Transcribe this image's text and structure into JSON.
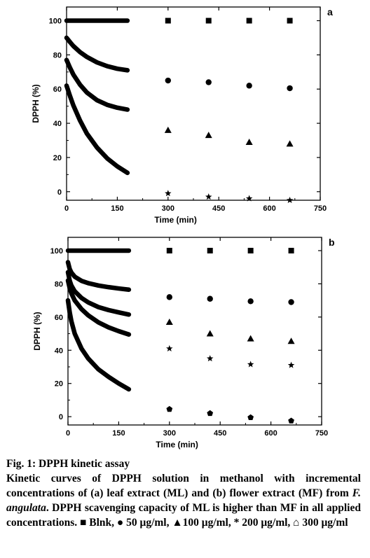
{
  "chart_data": [
    {
      "type": "scatter",
      "panel_label": "a",
      "xlabel": "Time (min)",
      "ylabel": "DPPH (%)",
      "xlim": [
        0,
        750
      ],
      "ylim": [
        -5,
        108
      ],
      "xticks": [
        0,
        150,
        300,
        450,
        600,
        750
      ],
      "yticks": [
        0,
        20,
        40,
        60,
        80,
        100
      ],
      "series": [
        {
          "marker": "square",
          "curve": [
            [
              0,
              100
            ],
            [
              180,
              100
            ]
          ],
          "points": [
            [
              300,
              100
            ],
            [
              420,
              100
            ],
            [
              540,
              100
            ],
            [
              660,
              100
            ]
          ]
        },
        {
          "marker": "circle",
          "curve": [
            [
              0,
              90
            ],
            [
              10,
              87.5
            ],
            [
              20,
              85.2
            ],
            [
              40,
              81.6
            ],
            [
              60,
              78.8
            ],
            [
              90,
              75.6
            ],
            [
              120,
              73.4
            ],
            [
              150,
              71.9
            ],
            [
              180,
              71
            ]
          ],
          "points": [
            [
              300,
              65
            ],
            [
              420,
              64
            ],
            [
              540,
              62
            ],
            [
              660,
              60.5
            ]
          ]
        },
        {
          "marker": "triangle",
          "curve": [
            [
              0,
              77
            ],
            [
              10,
              72.5
            ],
            [
              20,
              68.5
            ],
            [
              40,
              62.5
            ],
            [
              60,
              58
            ],
            [
              90,
              53.5
            ],
            [
              120,
              50.8
            ],
            [
              150,
              49.1
            ],
            [
              180,
              48
            ]
          ],
          "points": [
            [
              300,
              36
            ],
            [
              420,
              33
            ],
            [
              540,
              29
            ],
            [
              660,
              28
            ]
          ]
        },
        {
          "marker": "star",
          "curve": [
            [
              0,
              62
            ],
            [
              10,
              56
            ],
            [
              20,
              50.5
            ],
            [
              40,
              41.5
            ],
            [
              60,
              34
            ],
            [
              90,
              25.8
            ],
            [
              120,
              19.5
            ],
            [
              150,
              14.8
            ],
            [
              180,
              11
            ]
          ],
          "points": [
            [
              300,
              -1
            ],
            [
              420,
              -3
            ],
            [
              540,
              -4
            ],
            [
              660,
              -5
            ]
          ]
        }
      ]
    },
    {
      "type": "scatter",
      "panel_label": "b",
      "xlabel": "Time (min)",
      "ylabel": "DPPH (%)",
      "xlim": [
        0,
        750
      ],
      "ylim": [
        -5,
        108
      ],
      "xticks": [
        0,
        150,
        300,
        450,
        600,
        750
      ],
      "yticks": [
        0,
        20,
        40,
        60,
        80,
        100
      ],
      "series": [
        {
          "marker": "square",
          "curve": [
            [
              0,
              100
            ],
            [
              180,
              100
            ]
          ],
          "points": [
            [
              300,
              100
            ],
            [
              420,
              100
            ],
            [
              540,
              100
            ],
            [
              660,
              100
            ]
          ]
        },
        {
          "marker": "circle",
          "curve": [
            [
              0,
              93
            ],
            [
              5,
              89
            ],
            [
              10,
              86.8
            ],
            [
              20,
              84.3
            ],
            [
              40,
              81.8
            ],
            [
              60,
              80.4
            ],
            [
              90,
              79
            ],
            [
              120,
              78
            ],
            [
              150,
              77.2
            ],
            [
              180,
              76.5
            ]
          ],
          "points": [
            [
              300,
              72
            ],
            [
              420,
              71
            ],
            [
              540,
              69.5
            ],
            [
              660,
              69
            ]
          ]
        },
        {
          "marker": "triangle",
          "curve": [
            [
              0,
              87
            ],
            [
              5,
              82
            ],
            [
              10,
              79
            ],
            [
              20,
              75.5
            ],
            [
              40,
              71.5
            ],
            [
              60,
              68.8
            ],
            [
              90,
              66
            ],
            [
              120,
              64.2
            ],
            [
              150,
              62.8
            ],
            [
              180,
              61.5
            ]
          ],
          "points": [
            [
              300,
              57
            ],
            [
              420,
              50
            ],
            [
              540,
              47
            ],
            [
              660,
              45.5
            ]
          ]
        },
        {
          "marker": "star",
          "curve": [
            [
              0,
              82
            ],
            [
              5,
              77.5
            ],
            [
              10,
              74.3
            ],
            [
              20,
              70
            ],
            [
              40,
              64.8
            ],
            [
              60,
              61
            ],
            [
              90,
              56.8
            ],
            [
              120,
              53.8
            ],
            [
              150,
              51.5
            ],
            [
              180,
              49.5
            ]
          ],
          "points": [
            [
              300,
              41
            ],
            [
              420,
              35
            ],
            [
              540,
              31.5
            ],
            [
              660,
              31
            ]
          ]
        },
        {
          "marker": "pentagon",
          "curve": [
            [
              0,
              70
            ],
            [
              5,
              63
            ],
            [
              10,
              57.5
            ],
            [
              20,
              50
            ],
            [
              40,
              41
            ],
            [
              60,
              35
            ],
            [
              90,
              28.5
            ],
            [
              120,
              24
            ],
            [
              150,
              20
            ],
            [
              180,
              16.5
            ]
          ],
          "points": [
            [
              300,
              4.5
            ],
            [
              420,
              2
            ],
            [
              540,
              -0.5
            ],
            [
              660,
              -2.5
            ]
          ]
        }
      ]
    }
  ],
  "caption": {
    "title": "Fig. 1: DPPH kinetic assay",
    "body_part1": "Kinetic curves of DPPH solution in methanol with incremental concentrations of (a) leaf extract (ML) and (b) flower extract (MF) from ",
    "species": "F. angulata",
    "body_part2": ". DPPH scavenging capacity of ML is higher than MF in all applied concentrations. ■ Blnk, ● 50 μg/ml, ▲100 μg/ml, * 200 μg/ml, ⌂ 300 μg/ml"
  }
}
